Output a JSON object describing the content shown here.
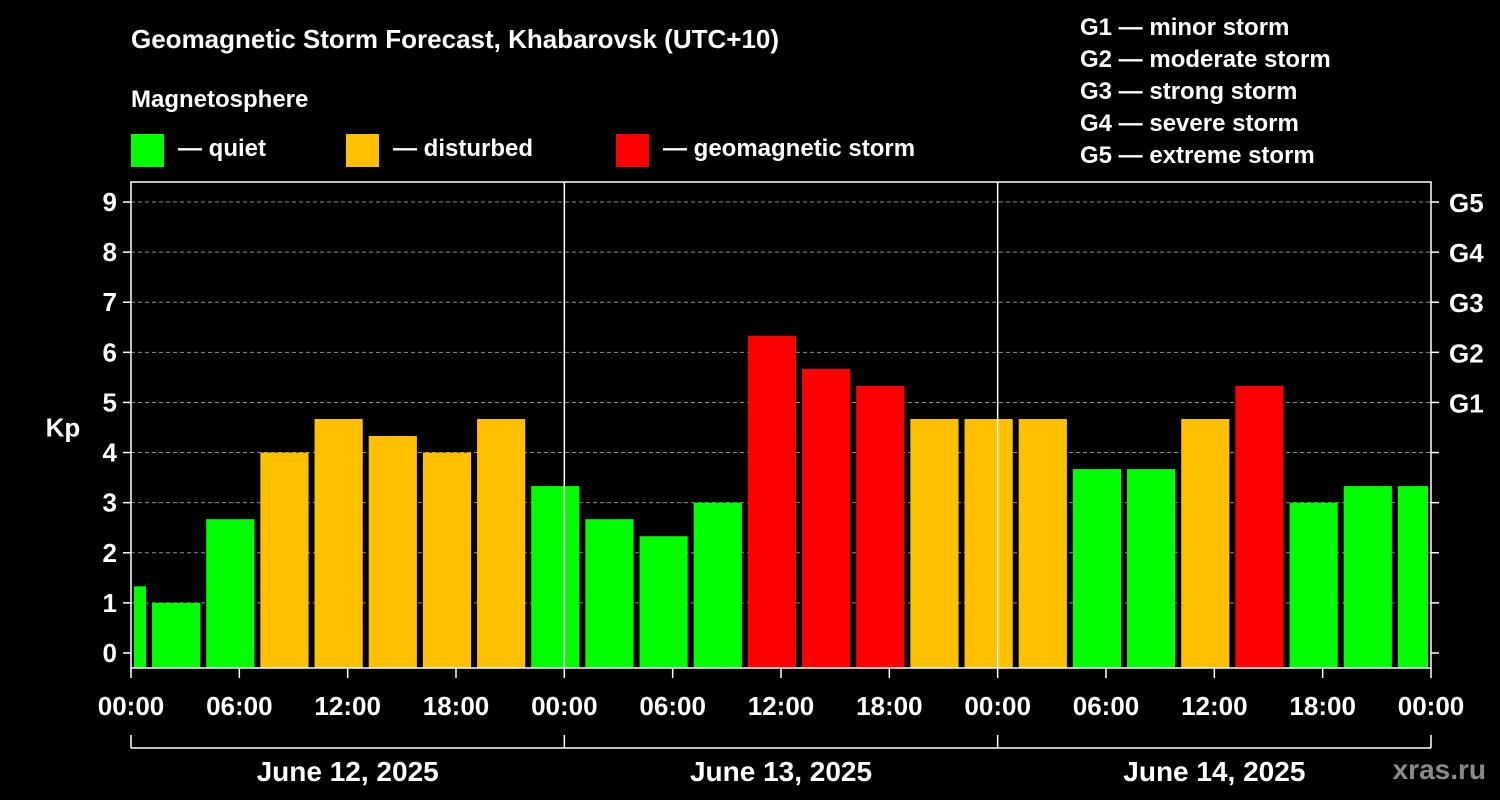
{
  "title": "Geomagnetic Storm Forecast, Khabarovsk (UTC+10)",
  "legend": {
    "title": "Magnetosphere",
    "items": [
      {
        "label": "— quiet",
        "color": "#00ff00"
      },
      {
        "label": "— disturbed",
        "color": "#ffc000"
      },
      {
        "label": "— geomagnetic storm",
        "color": "#ff0000"
      }
    ]
  },
  "storm_scale": [
    "G1 — minor storm",
    "G2 — moderate storm",
    "G3 — strong storm",
    "G4 — severe storm",
    "G5 — extreme storm"
  ],
  "watermark": "xras.ru",
  "chart_data": {
    "type": "bar",
    "ylabel": "Kp",
    "ylim": [
      -0.3,
      9.4
    ],
    "yticks": [
      0,
      1,
      2,
      3,
      4,
      5,
      6,
      7,
      8,
      9
    ],
    "right_ticks": [
      {
        "kp": 5,
        "label": "G1"
      },
      {
        "kp": 6,
        "label": "G2"
      },
      {
        "kp": 7,
        "label": "G3"
      },
      {
        "kp": 8,
        "label": "G4"
      },
      {
        "kp": 9,
        "label": "G5"
      }
    ],
    "x_range_hours": [
      0,
      72
    ],
    "xtick_labels": [
      "00:00",
      "06:00",
      "12:00",
      "18:00",
      "00:00",
      "06:00",
      "12:00",
      "18:00",
      "00:00",
      "06:00",
      "12:00",
      "18:00",
      "00:00"
    ],
    "days": [
      "June 12, 2025",
      "June 13, 2025",
      "June 14, 2025"
    ],
    "colors": {
      "quiet": "#00ff00",
      "disturbed": "#ffc000",
      "storm": "#ff0000"
    },
    "bars": [
      {
        "start": 0,
        "end": 1,
        "kp": 1.33,
        "level": "quiet"
      },
      {
        "start": 1,
        "end": 4,
        "kp": 1.0,
        "level": "quiet"
      },
      {
        "start": 4,
        "end": 7,
        "kp": 2.67,
        "level": "quiet"
      },
      {
        "start": 7,
        "end": 10,
        "kp": 4.0,
        "level": "disturbed"
      },
      {
        "start": 10,
        "end": 13,
        "kp": 4.67,
        "level": "disturbed"
      },
      {
        "start": 13,
        "end": 16,
        "kp": 4.33,
        "level": "disturbed"
      },
      {
        "start": 16,
        "end": 19,
        "kp": 4.0,
        "level": "disturbed"
      },
      {
        "start": 19,
        "end": 22,
        "kp": 4.67,
        "level": "disturbed"
      },
      {
        "start": 22,
        "end": 25,
        "kp": 3.33,
        "level": "quiet"
      },
      {
        "start": 25,
        "end": 28,
        "kp": 2.67,
        "level": "quiet"
      },
      {
        "start": 28,
        "end": 31,
        "kp": 2.33,
        "level": "quiet"
      },
      {
        "start": 31,
        "end": 34,
        "kp": 3.0,
        "level": "quiet"
      },
      {
        "start": 34,
        "end": 37,
        "kp": 6.33,
        "level": "storm"
      },
      {
        "start": 37,
        "end": 40,
        "kp": 5.67,
        "level": "storm"
      },
      {
        "start": 40,
        "end": 43,
        "kp": 5.33,
        "level": "storm"
      },
      {
        "start": 43,
        "end": 46,
        "kp": 4.67,
        "level": "disturbed"
      },
      {
        "start": 46,
        "end": 49,
        "kp": 4.67,
        "level": "disturbed"
      },
      {
        "start": 49,
        "end": 52,
        "kp": 4.67,
        "level": "disturbed"
      },
      {
        "start": 52,
        "end": 55,
        "kp": 3.67,
        "level": "quiet"
      },
      {
        "start": 55,
        "end": 58,
        "kp": 3.67,
        "level": "quiet"
      },
      {
        "start": 58,
        "end": 61,
        "kp": 4.67,
        "level": "disturbed"
      },
      {
        "start": 61,
        "end": 64,
        "kp": 5.33,
        "level": "storm"
      },
      {
        "start": 64,
        "end": 67,
        "kp": 3.0,
        "level": "quiet"
      },
      {
        "start": 67,
        "end": 70,
        "kp": 3.33,
        "level": "quiet"
      },
      {
        "start": 70,
        "end": 72,
        "kp": 3.33,
        "level": "quiet"
      }
    ]
  }
}
